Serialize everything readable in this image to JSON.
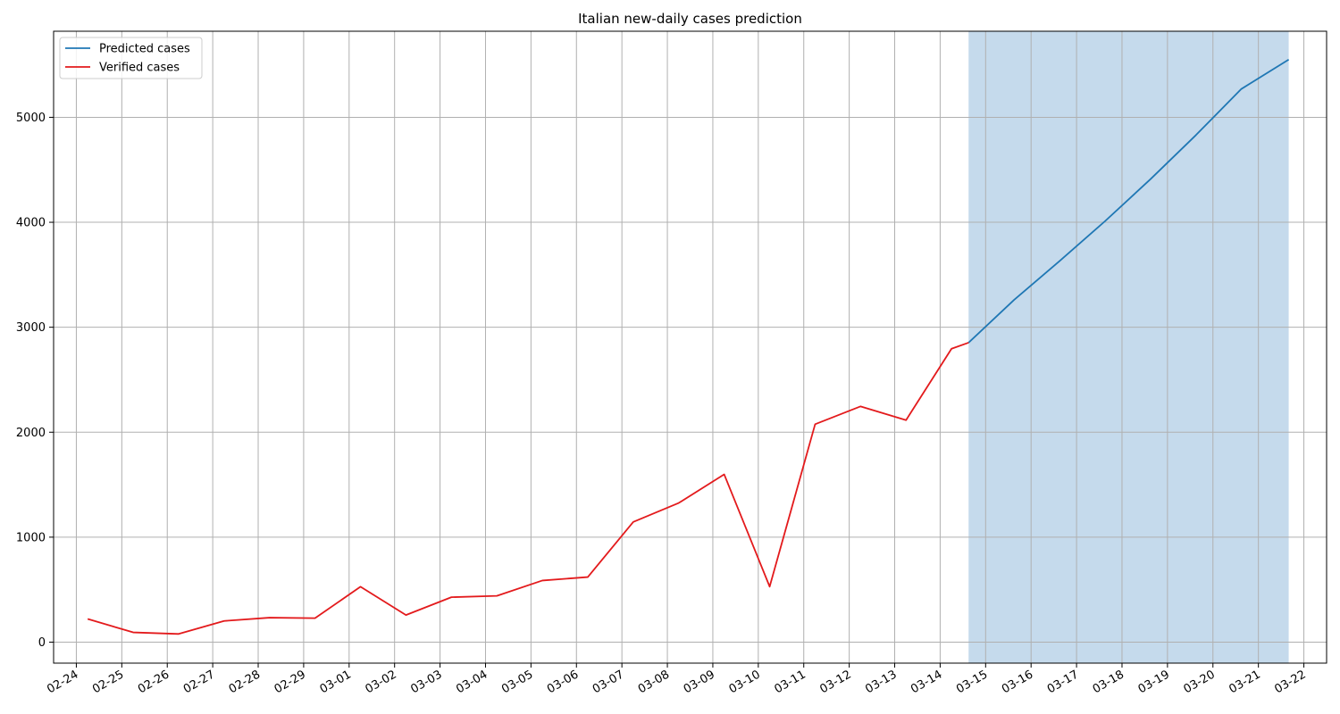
{
  "chart_data": {
    "type": "line",
    "title": "Italian new-daily cases prediction",
    "xlabel": "",
    "ylabel": "",
    "x_tick_labels": [
      "02-24",
      "02-25",
      "02-26",
      "02-27",
      "02-28",
      "02-29",
      "03-01",
      "03-02",
      "03-03",
      "03-04",
      "03-05",
      "03-06",
      "03-07",
      "03-08",
      "03-09",
      "03-10",
      "03-11",
      "03-12",
      "03-13",
      "03-14",
      "03-15",
      "03-16",
      "03-17",
      "03-18",
      "03-19",
      "03-20",
      "03-21",
      "03-22"
    ],
    "y_ticks": [
      0,
      1000,
      2000,
      3000,
      4000,
      5000
    ],
    "ylim": [
      -200,
      5820
    ],
    "xlim": [
      "02-23 12:00",
      "03-22 12:00"
    ],
    "grid": true,
    "legend_position": "top-left",
    "shaded_region": {
      "from": "03-14 15:00",
      "to": "03-21 16:00",
      "color": "#c5daec"
    },
    "series": [
      {
        "name": "Predicted cases",
        "color": "#1f77b4",
        "x": [
          "03-14 15:00",
          "03-15 15:00",
          "03-16 15:00",
          "03-17 15:00",
          "03-18 15:00",
          "03-19 15:00",
          "03-20 15:00",
          "03-21 16:00"
        ],
        "values": [
          2853,
          3260,
          3630,
          4010,
          4410,
          4830,
          5270,
          5550
        ]
      },
      {
        "name": "Verified cases",
        "color": "#e31a1c",
        "x": [
          "02-24 06:00",
          "02-25 06:00",
          "02-26 06:00",
          "02-27 06:00",
          "02-28 06:00",
          "02-29 06:00",
          "03-01 06:00",
          "03-02 06:00",
          "03-03 06:00",
          "03-04 06:00",
          "03-05 06:00",
          "03-06 06:00",
          "03-07 06:00",
          "03-08 06:00",
          "03-09 06:00",
          "03-10 06:00",
          "03-11 06:00",
          "03-12 06:00",
          "03-13 06:00",
          "03-14 06:00",
          "03-14 15:00"
        ],
        "values": [
          221,
          93,
          78,
          202,
          233,
          228,
          528,
          258,
          428,
          441,
          587,
          620,
          1145,
          1326,
          1598,
          529,
          2076,
          2246,
          2115,
          2795,
          2853
        ]
      }
    ]
  }
}
